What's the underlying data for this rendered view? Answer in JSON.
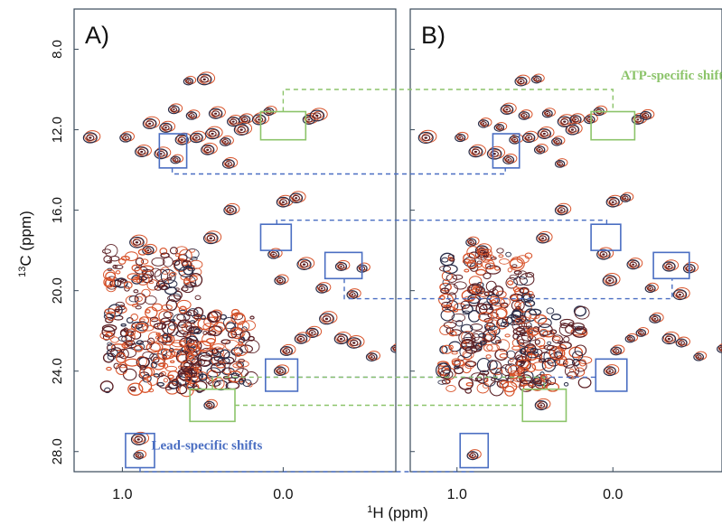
{
  "chart_data": {
    "type": "contour",
    "ylabel_pre": "13",
    "ylabel_main": "C (ppm)",
    "xlabel_pre": "1",
    "xlabel_main": "H (ppm)",
    "xlim": [
      1.3,
      -0.7
    ],
    "ylim": [
      6.0,
      29.0
    ],
    "yticks": [
      {
        "v": 8.0,
        "label": "8.0"
      },
      {
        "v": 12.0,
        "label": "12.0"
      },
      {
        "v": 16.0,
        "label": "16.0"
      },
      {
        "v": 20.0,
        "label": "20.0"
      },
      {
        "v": 24.0,
        "label": "24.0"
      },
      {
        "v": 28.0,
        "label": "28.0"
      }
    ],
    "xticks": [
      {
        "v": 1.0,
        "label": "1.0"
      },
      {
        "v": 0.0,
        "label": "0.0"
      }
    ],
    "colors": {
      "reference": "#2b2f4a",
      "compare": "#d8532a",
      "lead": "#4a6ec2",
      "atp": "#8cc46a",
      "frame": "#3a4a5a",
      "bulk": "#5a1f24"
    },
    "panels": [
      {
        "label": "A)",
        "peaks": [
          {
            "x": 0.59,
            "y": 9.6
          },
          {
            "x": 0.49,
            "y": 9.5
          },
          {
            "x": 0.68,
            "y": 11.0
          },
          {
            "x": 0.57,
            "y": 11.3
          },
          {
            "x": 0.42,
            "y": 11.2
          },
          {
            "x": 0.31,
            "y": 11.6
          },
          {
            "x": 0.24,
            "y": 11.5
          },
          {
            "x": 0.15,
            "y": 11.5
          },
          {
            "x": 0.83,
            "y": 11.7
          },
          {
            "x": 0.73,
            "y": 11.9
          },
          {
            "x": 0.63,
            "y": 12.5
          },
          {
            "x": 0.54,
            "y": 12.4
          },
          {
            "x": 0.44,
            "y": 12.2
          },
          {
            "x": 0.36,
            "y": 12.6
          },
          {
            "x": 0.98,
            "y": 12.4
          },
          {
            "x": 0.88,
            "y": 13.1
          },
          {
            "x": 0.76,
            "y": 13.2
          },
          {
            "x": 0.67,
            "y": 13.5
          },
          {
            "x": 0.47,
            "y": 13.0
          },
          {
            "x": 0.34,
            "y": 13.7
          },
          {
            "x": 0.26,
            "y": 12.0
          },
          {
            "x": 1.2,
            "y": 12.4
          },
          {
            "x": 0.09,
            "y": 11.1
          },
          {
            "x": -0.16,
            "y": 11.5
          },
          {
            "x": -0.21,
            "y": 11.3
          },
          {
            "x": 0.0,
            "y": 15.6
          },
          {
            "x": -0.08,
            "y": 15.4
          },
          {
            "x": 0.33,
            "y": 16.0
          },
          {
            "x": 0.45,
            "y": 17.4
          },
          {
            "x": 0.91,
            "y": 17.6
          },
          {
            "x": 0.84,
            "y": 18.0
          },
          {
            "x": 0.06,
            "y": 18.2
          },
          {
            "x": -0.13,
            "y": 18.7
          },
          {
            "x": -0.36,
            "y": 18.8
          },
          {
            "x": -0.49,
            "y": 18.9
          },
          {
            "x": 0.02,
            "y": 19.5
          },
          {
            "x": -0.24,
            "y": 19.9
          },
          {
            "x": -0.43,
            "y": 20.2
          },
          {
            "x": -0.27,
            "y": 21.4
          },
          {
            "x": -0.18,
            "y": 22.1
          },
          {
            "x": -0.36,
            "y": 22.4
          },
          {
            "x": -0.44,
            "y": 22.6
          },
          {
            "x": -0.7,
            "y": 22.9
          },
          {
            "x": -0.55,
            "y": 23.3
          },
          {
            "x": -0.11,
            "y": 22.4
          },
          {
            "x": -0.02,
            "y": 23.0
          },
          {
            "x": 0.02,
            "y": 24.0
          },
          {
            "x": 0.46,
            "y": 25.7
          },
          {
            "x": 0.9,
            "y": 27.4
          },
          {
            "x": 0.9,
            "y": 28.2
          }
        ]
      },
      {
        "label": "B)",
        "peaks": [
          {
            "x": 0.59,
            "y": 9.6
          },
          {
            "x": 0.49,
            "y": 9.5
          },
          {
            "x": 0.68,
            "y": 11.0
          },
          {
            "x": 0.57,
            "y": 11.3
          },
          {
            "x": 0.42,
            "y": 11.2
          },
          {
            "x": 0.31,
            "y": 11.6
          },
          {
            "x": 0.24,
            "y": 11.5
          },
          {
            "x": 0.15,
            "y": 11.5
          },
          {
            "x": 0.83,
            "y": 11.7
          },
          {
            "x": 0.73,
            "y": 11.9
          },
          {
            "x": 0.63,
            "y": 12.5
          },
          {
            "x": 0.54,
            "y": 12.4
          },
          {
            "x": 0.44,
            "y": 12.2
          },
          {
            "x": 0.36,
            "y": 12.6
          },
          {
            "x": 0.98,
            "y": 12.4
          },
          {
            "x": 0.88,
            "y": 13.1
          },
          {
            "x": 0.76,
            "y": 13.2
          },
          {
            "x": 0.67,
            "y": 13.5
          },
          {
            "x": 0.47,
            "y": 13.0
          },
          {
            "x": 0.34,
            "y": 13.7
          },
          {
            "x": 0.26,
            "y": 12.0
          },
          {
            "x": 1.2,
            "y": 12.4
          },
          {
            "x": 0.09,
            "y": 11.1
          },
          {
            "x": -0.16,
            "y": 11.5
          },
          {
            "x": -0.21,
            "y": 11.3
          },
          {
            "x": 0.0,
            "y": 15.6
          },
          {
            "x": -0.08,
            "y": 15.4
          },
          {
            "x": 0.33,
            "y": 16.0
          },
          {
            "x": 0.45,
            "y": 17.4
          },
          {
            "x": 0.91,
            "y": 17.6
          },
          {
            "x": 0.84,
            "y": 18.0
          },
          {
            "x": 0.06,
            "y": 18.2
          },
          {
            "x": -0.13,
            "y": 18.7
          },
          {
            "x": -0.36,
            "y": 18.8
          },
          {
            "x": -0.49,
            "y": 18.9
          },
          {
            "x": 0.02,
            "y": 19.5
          },
          {
            "x": -0.24,
            "y": 19.9
          },
          {
            "x": -0.43,
            "y": 20.2
          },
          {
            "x": -0.27,
            "y": 21.4
          },
          {
            "x": -0.18,
            "y": 22.1
          },
          {
            "x": -0.36,
            "y": 22.4
          },
          {
            "x": -0.44,
            "y": 22.6
          },
          {
            "x": -0.7,
            "y": 22.9
          },
          {
            "x": -0.55,
            "y": 23.3
          },
          {
            "x": -0.11,
            "y": 22.4
          },
          {
            "x": -0.02,
            "y": 23.0
          },
          {
            "x": 0.02,
            "y": 24.0
          },
          {
            "x": 0.46,
            "y": 25.7
          },
          {
            "x": 0.9,
            "y": 28.2
          }
        ]
      }
    ],
    "bulk_regions": [
      {
        "x": [
          1.1,
          0.52
        ],
        "y": [
          18.0,
          25.0
        ]
      },
      {
        "x": [
          0.63,
          0.18
        ],
        "y": [
          21.0,
          24.8
        ]
      }
    ],
    "annotations": [
      {
        "text": "ATP-specific shifts",
        "color": "#8cc46a",
        "panel": 1,
        "x": -0.05,
        "y": 9.5
      },
      {
        "text": "Lead-specific shifts",
        "color": "#4a6ec2",
        "panel": 0,
        "x": 0.82,
        "y": 27.9
      }
    ],
    "highlight_boxes": [
      {
        "type": "atp",
        "panel": 0,
        "x": [
          0.14,
          -0.14
        ],
        "y": [
          11.1,
          12.5
        ]
      },
      {
        "type": "atp",
        "panel": 1,
        "x": [
          0.14,
          -0.14
        ],
        "y": [
          11.1,
          12.5
        ]
      },
      {
        "type": "atp",
        "panel": 0,
        "x": [
          0.58,
          0.3
        ],
        "y": [
          24.9,
          26.5
        ]
      },
      {
        "type": "atp",
        "panel": 1,
        "x": [
          0.58,
          0.3
        ],
        "y": [
          24.9,
          26.5
        ]
      },
      {
        "type": "lead",
        "panel": 0,
        "x": [
          0.77,
          0.6
        ],
        "y": [
          12.2,
          13.9
        ]
      },
      {
        "type": "lead",
        "panel": 1,
        "x": [
          0.77,
          0.6
        ],
        "y": [
          12.2,
          13.9
        ]
      },
      {
        "type": "lead",
        "panel": 0,
        "x": [
          0.14,
          -0.05
        ],
        "y": [
          16.7,
          18.0
        ]
      },
      {
        "type": "lead",
        "panel": 1,
        "x": [
          0.14,
          -0.05
        ],
        "y": [
          16.7,
          18.0
        ]
      },
      {
        "type": "lead",
        "panel": 0,
        "x": [
          -0.26,
          -0.49
        ],
        "y": [
          18.1,
          19.4
        ]
      },
      {
        "type": "lead",
        "panel": 1,
        "x": [
          -0.26,
          -0.49
        ],
        "y": [
          18.1,
          19.4
        ]
      },
      {
        "type": "lead",
        "panel": 0,
        "x": [
          0.11,
          -0.09
        ],
        "y": [
          23.4,
          25.0
        ]
      },
      {
        "type": "lead",
        "panel": 1,
        "x": [
          0.11,
          -0.09
        ],
        "y": [
          23.4,
          25.0
        ]
      },
      {
        "type": "lead",
        "panel": 0,
        "x": [
          0.98,
          0.8
        ],
        "y": [
          27.1,
          28.8
        ]
      },
      {
        "type": "lead",
        "panel": 1,
        "x": [
          0.98,
          0.8
        ],
        "y": [
          27.1,
          28.8
        ]
      }
    ],
    "connectors": [
      {
        "type": "atp",
        "points": [
          [
            0,
            0.0,
            11.1
          ],
          [
            0,
            0.0,
            10.0
          ],
          [
            1,
            0.0,
            10.0
          ],
          [
            1,
            0.0,
            11.1
          ]
        ]
      },
      {
        "type": "lead",
        "points": [
          [
            0,
            0.69,
            13.9
          ],
          [
            0,
            0.69,
            14.2
          ],
          [
            1,
            0.69,
            14.2
          ],
          [
            1,
            0.69,
            13.9
          ]
        ]
      },
      {
        "type": "lead",
        "points": [
          [
            0,
            0.04,
            16.7
          ],
          [
            0,
            0.04,
            16.5
          ],
          [
            1,
            0.04,
            16.5
          ],
          [
            1,
            0.04,
            16.7
          ]
        ]
      },
      {
        "type": "lead",
        "points": [
          [
            0,
            -0.38,
            19.4
          ],
          [
            0,
            -0.38,
            20.4
          ],
          [
            1,
            -0.38,
            20.4
          ],
          [
            1,
            -0.38,
            19.4
          ]
        ]
      },
      {
        "type": "lead",
        "points": [
          [
            0,
            0.11,
            24.3
          ],
          [
            1,
            0.11,
            24.3
          ]
        ]
      },
      {
        "type": "atp",
        "points": [
          [
            0,
            0.44,
            24.9
          ],
          [
            0,
            0.44,
            24.3
          ],
          [
            1,
            0.44,
            24.3
          ],
          [
            1,
            0.44,
            24.9
          ]
        ]
      },
      {
        "type": "atp",
        "points": [
          [
            0,
            0.3,
            25.7
          ],
          [
            1,
            0.58,
            25.7
          ]
        ]
      },
      {
        "type": "lead",
        "points": [
          [
            0,
            0.89,
            28.8
          ],
          [
            0,
            0.89,
            29.0
          ],
          [
            1,
            0.89,
            29.0
          ],
          [
            1,
            0.89,
            28.8
          ]
        ]
      }
    ]
  }
}
